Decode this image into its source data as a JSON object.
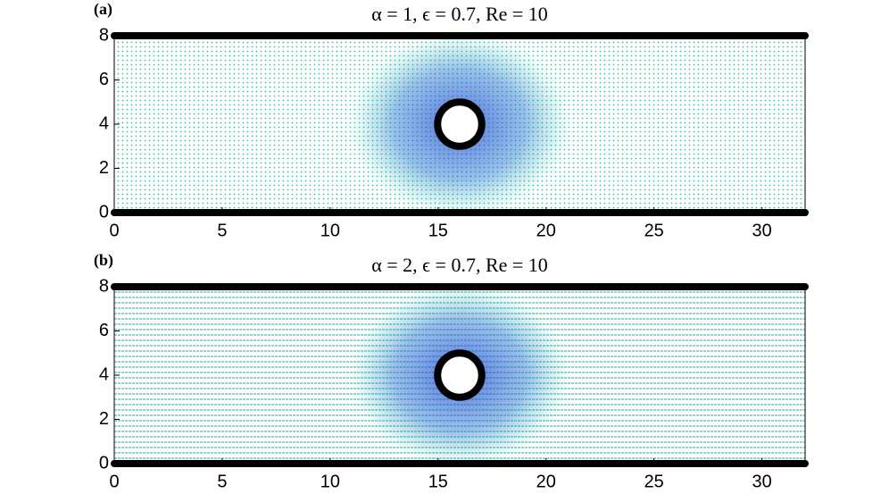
{
  "chart_data": [
    {
      "type": "particle-field",
      "panel_label": "(a)",
      "title": "α = 1, ϵ = 0.7, Re = 10",
      "xlim": [
        0,
        32
      ],
      "ylim": [
        0,
        8
      ],
      "xticks": [
        0,
        5,
        10,
        15,
        20,
        25,
        30
      ],
      "yticks": [
        0,
        2,
        4,
        6,
        8
      ],
      "cylinder": {
        "x": 16,
        "y": 4,
        "r": 1
      },
      "color": "#2ec4a6"
    },
    {
      "type": "particle-field",
      "panel_label": "(b)",
      "title": "α = 2, ϵ = 0.7, Re = 10",
      "xlim": [
        0,
        32
      ],
      "ylim": [
        0,
        8
      ],
      "xticks": [
        0,
        5,
        10,
        15,
        20,
        25,
        30
      ],
      "yticks": [
        0,
        2,
        4,
        6,
        8
      ],
      "cylinder": {
        "x": 16,
        "y": 4,
        "r": 1
      },
      "color": "#2ec4a6"
    }
  ]
}
